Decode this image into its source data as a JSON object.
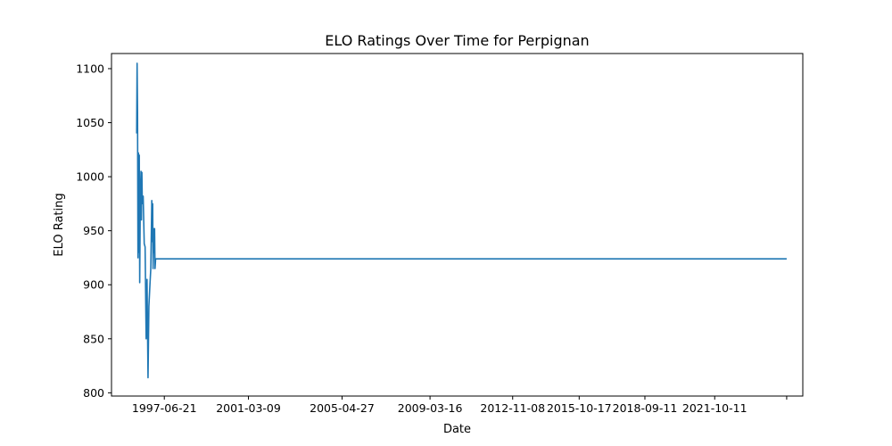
{
  "chart_data": {
    "type": "line",
    "title": "ELO Ratings Over Time for Perpignan",
    "xlabel": "Date",
    "ylabel": "ELO Rating",
    "xlim": [
      "1995-02-20",
      "2025-09-01"
    ],
    "ylim": [
      797,
      1114
    ],
    "x_ticks": [
      "1997-06-21",
      "2001-03-09",
      "2005-04-27",
      "2009-03-16",
      "2012-11-08",
      "2015-10-17",
      "2018-09-11",
      "2021-10-11",
      "2024-12-15"
    ],
    "x_tick_labels": [
      "1997-06-21",
      "2001-03-09",
      "2005-04-27",
      "2009-03-16",
      "2012-11-08",
      "2015-10-17",
      "2018-09-11",
      "2021-10-11",
      ""
    ],
    "y_ticks": [
      800,
      850,
      900,
      950,
      1000,
      1050,
      1100
    ],
    "y_tick_labels": [
      "800",
      "850",
      "900",
      "950",
      "1000",
      "1050",
      "1100"
    ],
    "grid": false,
    "series": [
      {
        "color": "#1f77b4",
        "x": [
          "1996-04-01",
          "1996-04-08",
          "1996-04-15",
          "1996-04-22",
          "1996-04-29",
          "1996-05-06",
          "1996-05-13",
          "1996-05-20",
          "1996-05-27",
          "1996-06-03",
          "1996-06-10",
          "1996-06-17",
          "1996-06-24",
          "1996-07-01",
          "1996-07-08",
          "1996-07-15",
          "1996-08-01",
          "1996-08-15",
          "1996-09-01",
          "1996-09-15",
          "1996-10-01",
          "1996-10-15",
          "1996-11-01",
          "1996-11-15",
          "1996-12-01",
          "1996-12-08",
          "1996-12-15",
          "1996-12-22",
          "1997-01-01",
          "1997-01-08",
          "1997-01-15",
          "1997-01-22",
          "1997-02-01",
          "1997-02-08",
          "1997-02-15",
          "1997-02-22",
          "1997-03-01",
          "1997-03-08",
          "1997-03-15",
          "1997-03-22",
          "1997-04-01",
          "1997-04-08",
          "1997-04-15",
          "2024-12-15"
        ],
        "y": [
          1040,
          1105,
          1060,
          925,
          1022,
          930,
          1020,
          902,
          960,
          990,
          1005,
          960,
          1004,
          975,
          982,
          982,
          938,
          935,
          850,
          905,
          814,
          880,
          900,
          915,
          978,
          940,
          975,
          915,
          952,
          930,
          952,
          915,
          924,
          924,
          924,
          924,
          924,
          924,
          924,
          924,
          924,
          924,
          924,
          924
        ]
      }
    ]
  }
}
